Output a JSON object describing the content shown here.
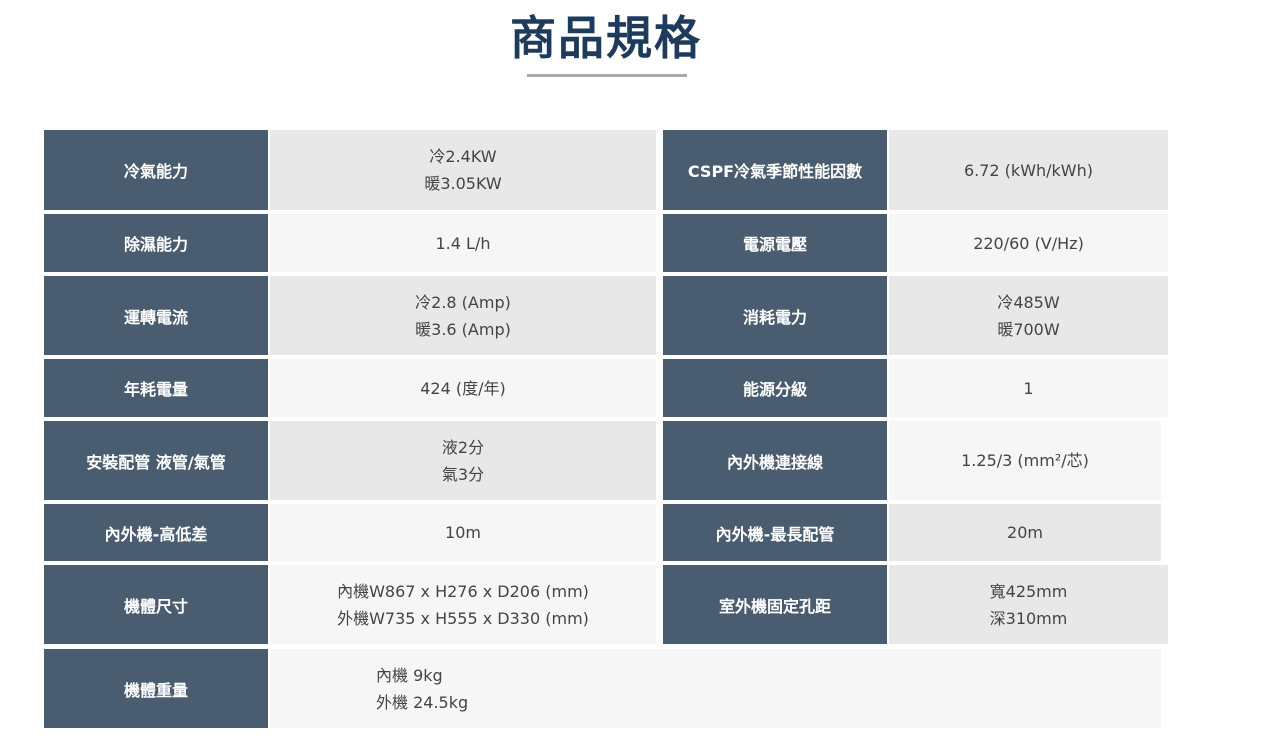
{
  "title": "商品規格",
  "rows": [
    {
      "l1": "冷氣能力",
      "v1": [
        "冷2.4KW",
        "暖3.05KW"
      ],
      "l2": "CSPF冷氣季節性能因數",
      "v2": [
        "6.72 (kWh/kWh)"
      ]
    },
    {
      "l1": "除濕能力",
      "v1": [
        "1.4 L/h"
      ],
      "l2": "電源電壓",
      "v2": [
        "220/60 (V/Hz)"
      ]
    },
    {
      "l1": "運轉電流",
      "v1": [
        "冷2.8 (Amp)",
        "暖3.6 (Amp)"
      ],
      "l2": "消耗電力",
      "v2": [
        "冷485W",
        "暖700W"
      ]
    },
    {
      "l1": "年耗電量",
      "v1": [
        "424 (度/年)"
      ],
      "l2": "能源分級",
      "v2": [
        "1"
      ]
    },
    {
      "l1": "安裝配管 液管/氣管",
      "v1": [
        "液2分",
        "氣3分"
      ],
      "l2": "內外機連接線",
      "v2": [
        "1.25/3 (mm²/芯)"
      ]
    },
    {
      "l1": "內外機-高低差",
      "v1": [
        "10m"
      ],
      "l2": "內外機-最長配管",
      "v2": [
        "20m"
      ]
    },
    {
      "l1": "機體尺寸",
      "v1": [
        "內機W867 x H276 x D206 (mm)",
        "外機W735 x H555 x D330 (mm)"
      ],
      "l2": "室外機固定孔距",
      "v2": [
        "寬425mm",
        "深310mm"
      ]
    },
    {
      "l1": "機體重量",
      "v1": [
        "內機 9kg",
        "外機 24.5kg"
      ]
    }
  ]
}
